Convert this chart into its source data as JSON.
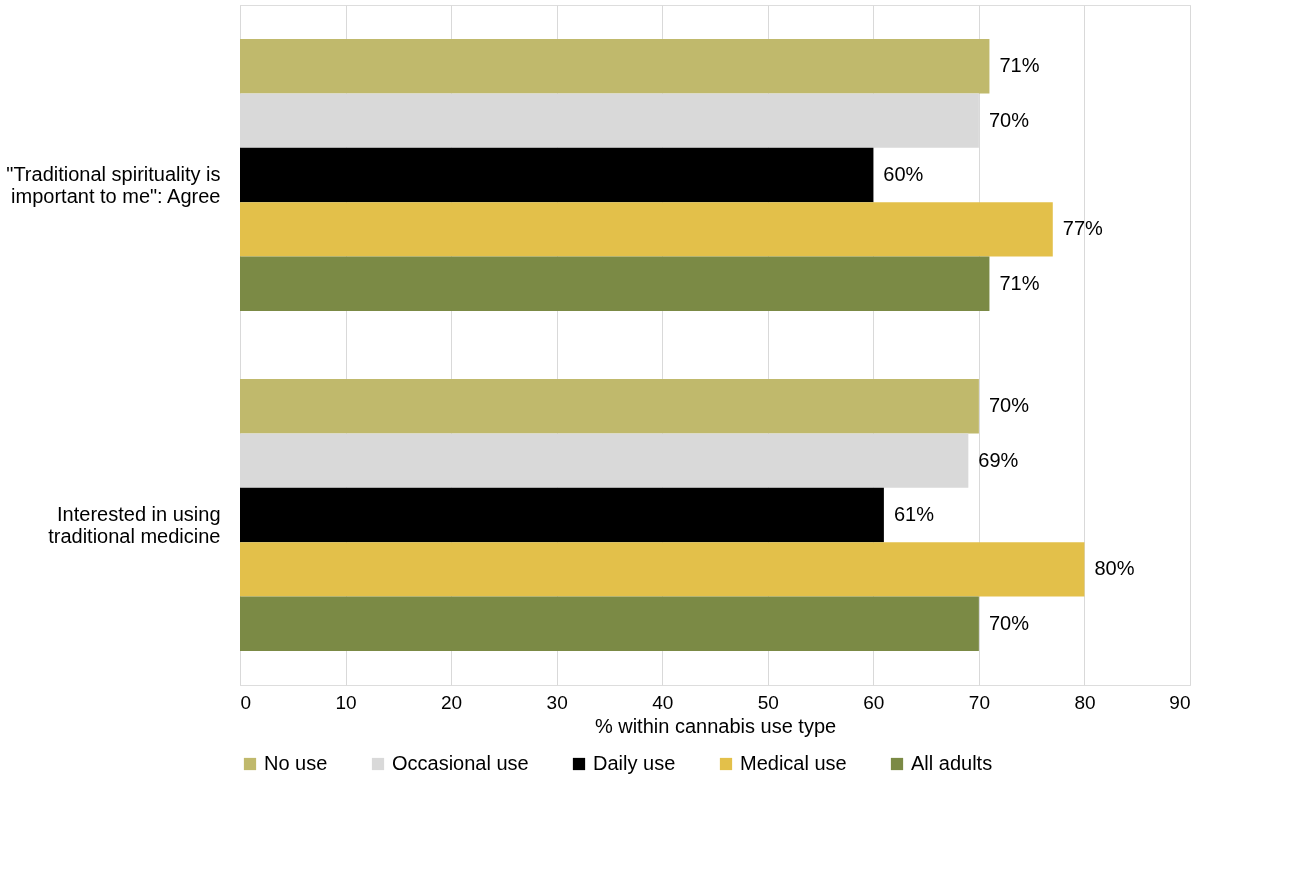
{
  "chart_data": {
    "type": "bar",
    "orientation": "horizontal",
    "categories": [
      "\"Traditional spirituality is important to me\": Agree",
      "Interested in using traditional medicine"
    ],
    "series": [
      {
        "name": "No use",
        "color": "#c0b96c",
        "values": [
          71,
          70
        ],
        "value_labels": [
          "71%",
          "70%"
        ]
      },
      {
        "name": "Occasional use",
        "color": "#d9d9d9",
        "values": [
          70,
          69
        ],
        "value_labels": [
          "70%",
          "69%"
        ]
      },
      {
        "name": "Daily use",
        "color": "#000000",
        "values": [
          60,
          61
        ],
        "value_labels": [
          "60%",
          "61%"
        ]
      },
      {
        "name": "Medical use",
        "color": "#e3c04a",
        "values": [
          77,
          80
        ],
        "value_labels": [
          "77%",
          "80%"
        ]
      },
      {
        "name": "All adults",
        "color": "#7b8a45",
        "values": [
          71,
          70
        ],
        "value_labels": [
          "71%",
          "70%"
        ]
      }
    ],
    "xlabel": "% within cannabis use type",
    "xlim": [
      0,
      90
    ],
    "xticks": [
      0,
      10,
      20,
      30,
      40,
      50,
      60,
      70,
      80,
      90
    ],
    "grid": "x",
    "legend": "bottom"
  }
}
